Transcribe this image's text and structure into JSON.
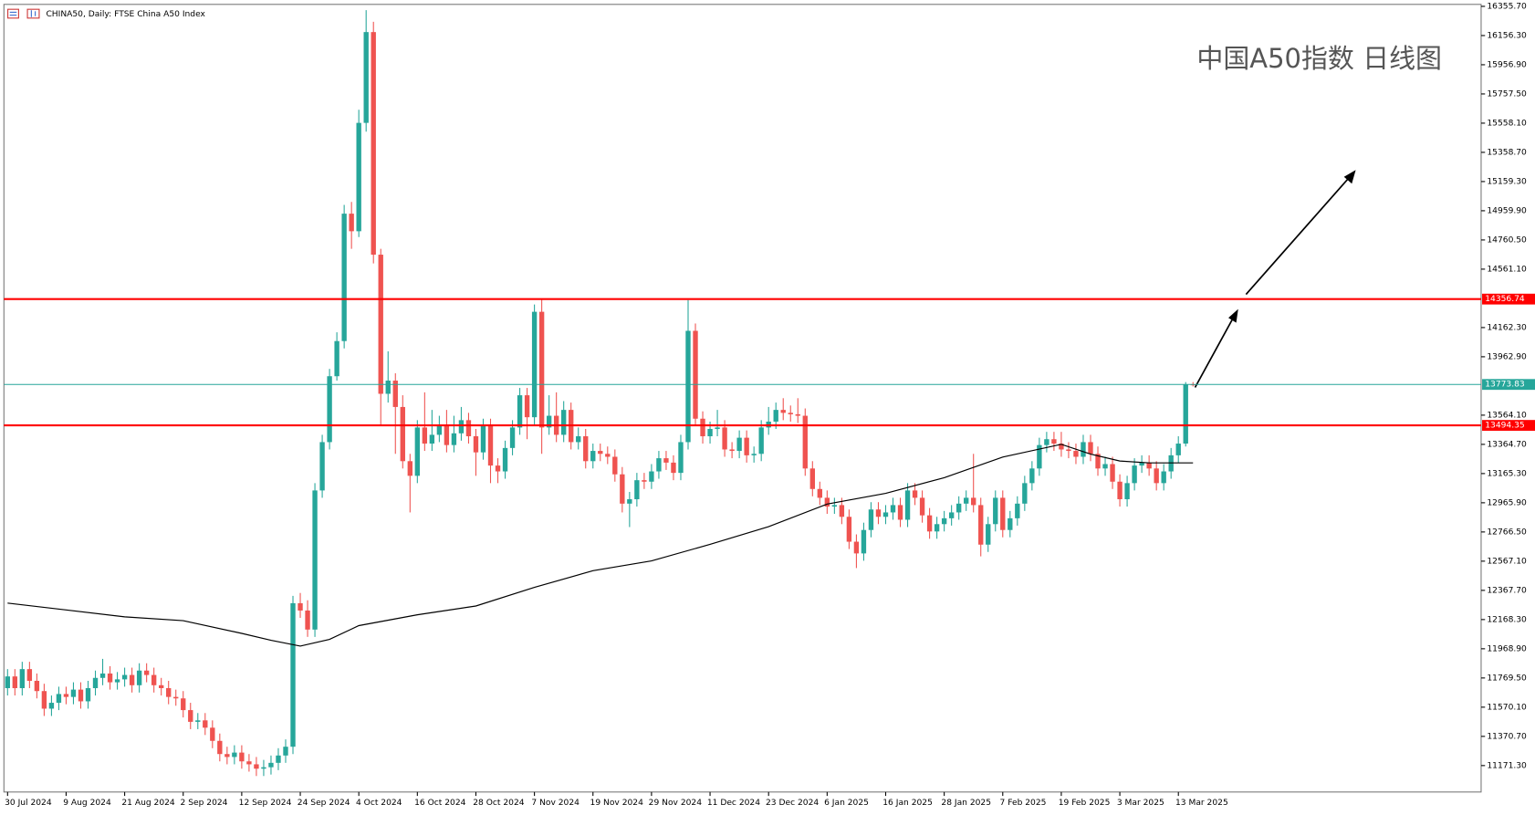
{
  "chart_data": {
    "type": "candlestick",
    "title": "CHINA50, Daily:  FTSE China A50 Index",
    "annotation": "中国A50指数 日线图",
    "up_color": "#26a69a",
    "down_color": "#ef5350",
    "ylim": [
      10990.8,
      16369.1
    ],
    "yticks": [
      {
        "value": 16355.7,
        "label": "16355.70"
      },
      {
        "value": 16156.3,
        "label": "16156.30"
      },
      {
        "value": 15956.9,
        "label": "15956.90"
      },
      {
        "value": 15757.5,
        "label": "15757.50"
      },
      {
        "value": 15558.1,
        "label": "15558.10"
      },
      {
        "value": 15358.7,
        "label": "15358.70"
      },
      {
        "value": 15159.3,
        "label": "15159.30"
      },
      {
        "value": 14959.9,
        "label": "14959.90"
      },
      {
        "value": 14760.5,
        "label": "14760.50"
      },
      {
        "value": 14561.1,
        "label": "14561.10"
      },
      {
        "value": 14162.3,
        "label": "14162.30"
      },
      {
        "value": 13962.9,
        "label": "13962.90"
      },
      {
        "value": 13564.1,
        "label": "13564.10"
      },
      {
        "value": 13364.7,
        "label": "13364.70"
      },
      {
        "value": 13165.3,
        "label": "13165.30"
      },
      {
        "value": 12965.9,
        "label": "12965.90"
      },
      {
        "value": 12766.5,
        "label": "12766.50"
      },
      {
        "value": 12567.1,
        "label": "12567.10"
      },
      {
        "value": 12367.7,
        "label": "12367.70"
      },
      {
        "value": 12168.3,
        "label": "12168.30"
      },
      {
        "value": 11968.9,
        "label": "11968.90"
      },
      {
        "value": 11769.5,
        "label": "11769.50"
      },
      {
        "value": 11570.1,
        "label": "11570.10"
      },
      {
        "value": 11370.7,
        "label": "11370.70"
      },
      {
        "value": 11171.3,
        "label": "11171.30"
      }
    ],
    "xticks": [
      {
        "value": 0,
        "label": "30 Jul 2024"
      },
      {
        "value": 8,
        "label": "9 Aug 2024"
      },
      {
        "value": 16,
        "label": "21 Aug 2024"
      },
      {
        "value": 24,
        "label": "2 Sep 2024"
      },
      {
        "value": 32,
        "label": "12 Sep 2024"
      },
      {
        "value": 40,
        "label": "24 Sep 2024"
      },
      {
        "value": 48,
        "label": "4 Oct 2024"
      },
      {
        "value": 56,
        "label": "16 Oct 2024"
      },
      {
        "value": 64,
        "label": "28 Oct 2024"
      },
      {
        "value": 72,
        "label": "7 Nov 2024"
      },
      {
        "value": 80,
        "label": "19 Nov 2024"
      },
      {
        "value": 88,
        "label": "29 Nov 2024"
      },
      {
        "value": 96,
        "label": "11 Dec 2024"
      },
      {
        "value": 104,
        "label": "23 Dec 2024"
      },
      {
        "value": 112,
        "label": "6 Jan 2025"
      },
      {
        "value": 120,
        "label": "16 Jan 2025"
      },
      {
        "value": 128,
        "label": "28 Jan 2025"
      },
      {
        "value": 136,
        "label": "7 Feb 2025"
      },
      {
        "value": 144,
        "label": "19 Feb 2025"
      },
      {
        "value": 152,
        "label": "3 Mar 2025"
      },
      {
        "value": 160,
        "label": "13 Mar 2025"
      }
    ],
    "open": [
      11700,
      11780,
      11700,
      11830,
      11750,
      11680,
      11560,
      11600,
      11660,
      11640,
      11690,
      11610,
      11700,
      11770,
      11800,
      11740,
      11760,
      11790,
      11720,
      11820,
      11790,
      11720,
      11700,
      11640,
      11630,
      11550,
      11470,
      11480,
      11430,
      11340,
      11250,
      11230,
      11260,
      11200,
      11180,
      11150,
      11160,
      11190,
      11240,
      11300,
      12280,
      12230,
      12100,
      13050,
      13380,
      13830,
      14070,
      14940,
      14820,
      15560,
      16180,
      14660,
      13710,
      13800,
      13620,
      13250,
      13150,
      13480,
      13370,
      13430,
      13500,
      13360,
      13440,
      13530,
      13420,
      13310,
      13490,
      13220,
      13180,
      13340,
      13480,
      13700,
      13550,
      14270,
      13480,
      13560,
      13430,
      13600,
      13380,
      13420,
      13250,
      13320,
      13300,
      13280,
      13160,
      12960,
      12990,
      13120,
      13110,
      13180,
      13270,
      13240,
      13170,
      13380,
      14140,
      13540,
      13420,
      13470,
      13480,
      13330,
      13320,
      13410,
      13290,
      13300,
      13480,
      13520,
      13600,
      13580,
      13570,
      13560,
      13200,
      13060,
      13000,
      12940,
      12950,
      12870,
      12700,
      12620,
      12780,
      12920,
      12870,
      12900,
      12950,
      12850,
      13050,
      13000,
      12880,
      12770,
      12820,
      12860,
      12900,
      12960,
      13000,
      12950,
      12680,
      12820,
      13000,
      12780,
      12860,
      12960,
      13100,
      13200,
      13360,
      13400,
      13370,
      13330,
      13320,
      13280,
      13380,
      13300,
      13200,
      13230,
      13110,
      12990,
      13100,
      13220,
      13240,
      13200,
      13100,
      13180,
      13290,
      13370,
      13775
    ],
    "close": [
      11780,
      11700,
      11830,
      11750,
      11680,
      11560,
      11600,
      11660,
      11640,
      11690,
      11610,
      11700,
      11770,
      11800,
      11740,
      11760,
      11790,
      11720,
      11820,
      11790,
      11720,
      11700,
      11640,
      11630,
      11550,
      11470,
      11480,
      11430,
      11340,
      11250,
      11230,
      11260,
      11200,
      11180,
      11150,
      11160,
      11190,
      11240,
      11300,
      12280,
      12230,
      12100,
      13050,
      13380,
      13830,
      14070,
      14940,
      14820,
      15560,
      16180,
      14660,
      13710,
      13800,
      13620,
      13250,
      13150,
      13480,
      13370,
      13430,
      13500,
      13360,
      13440,
      13530,
      13420,
      13310,
      13490,
      13220,
      13180,
      13340,
      13480,
      13700,
      13550,
      14270,
      13480,
      13560,
      13430,
      13600,
      13380,
      13420,
      13250,
      13320,
      13300,
      13280,
      13160,
      12960,
      12990,
      13120,
      13110,
      13180,
      13270,
      13240,
      13170,
      13380,
      14140,
      13540,
      13420,
      13470,
      13480,
      13330,
      13320,
      13410,
      13290,
      13300,
      13480,
      13520,
      13600,
      13580,
      13570,
      13560,
      13200,
      13060,
      13000,
      12940,
      12950,
      12870,
      12700,
      12620,
      12780,
      12920,
      12870,
      12900,
      12950,
      12850,
      13050,
      13000,
      12880,
      12770,
      12820,
      12860,
      12900,
      12960,
      13000,
      12950,
      12680,
      12820,
      13000,
      12780,
      12860,
      12960,
      13100,
      13200,
      13360,
      13400,
      13370,
      13330,
      13320,
      13280,
      13380,
      13300,
      13200,
      13230,
      13110,
      12990,
      13100,
      13220,
      13240,
      13200,
      13100,
      13180,
      13290,
      13370,
      13775,
      13774
    ],
    "high": [
      11830,
      11830,
      11880,
      11880,
      11800,
      11730,
      11650,
      11710,
      11710,
      11740,
      11740,
      11750,
      11820,
      11900,
      11850,
      11810,
      11840,
      11840,
      11870,
      11870,
      11840,
      11770,
      11750,
      11690,
      11680,
      11600,
      11530,
      11530,
      11480,
      11390,
      11300,
      11310,
      11310,
      11250,
      11230,
      11210,
      11240,
      11290,
      11350,
      12330,
      12350,
      12300,
      13100,
      13430,
      13880,
      14130,
      15000,
      15020,
      15650,
      16330,
      16250,
      14700,
      14000,
      13850,
      13700,
      13300,
      13530,
      13720,
      13600,
      13560,
      13600,
      13560,
      13620,
      13580,
      13470,
      13540,
      13540,
      13270,
      13390,
      13530,
      13750,
      13750,
      14320,
      14360,
      13700,
      13720,
      13660,
      13650,
      13480,
      13470,
      13370,
      13370,
      13350,
      13330,
      13210,
      13040,
      13170,
      13170,
      13230,
      13320,
      13320,
      13290,
      13430,
      14350,
      14190,
      13590,
      13520,
      13600,
      13530,
      13380,
      13460,
      13460,
      13350,
      13530,
      13620,
      13650,
      13680,
      13630,
      13680,
      13610,
      13250,
      13110,
      13050,
      13000,
      13000,
      12920,
      12750,
      12830,
      12970,
      12970,
      12950,
      13000,
      13000,
      13100,
      13100,
      13050,
      12930,
      12870,
      12910,
      12950,
      13010,
      13050,
      13300,
      13000,
      12870,
      13050,
      13050,
      12910,
      13010,
      13150,
      13250,
      13410,
      13450,
      13450,
      13450,
      13380,
      13370,
      13430,
      13430,
      13350,
      13280,
      13280,
      13160,
      13150,
      13270,
      13290,
      13290,
      13250,
      13230,
      13340,
      13420,
      13790,
      13790
    ],
    "low": [
      11650,
      11650,
      11650,
      11700,
      11630,
      11510,
      11510,
      11550,
      11590,
      11590,
      11560,
      11560,
      11650,
      11720,
      11690,
      11690,
      11710,
      11670,
      11670,
      11740,
      11670,
      11650,
      11590,
      11580,
      11500,
      11420,
      11420,
      11380,
      11290,
      11200,
      11180,
      11180,
      11150,
      11130,
      11100,
      11100,
      11110,
      11140,
      11190,
      11250,
      12180,
      12050,
      12050,
      13000,
      13330,
      13800,
      14020,
      14700,
      14780,
      15500,
      14600,
      13500,
      13650,
      13300,
      13200,
      12900,
      13100,
      13320,
      13320,
      13380,
      13310,
      13310,
      13390,
      13370,
      13150,
      13260,
      13100,
      13100,
      13130,
      13290,
      13430,
      13400,
      13500,
      13300,
      13430,
      13380,
      13380,
      13330,
      13330,
      13200,
      13200,
      13250,
      13230,
      13110,
      12900,
      12800,
      12940,
      13060,
      13060,
      13130,
      13190,
      13120,
      13120,
      13330,
      13490,
      13370,
      13370,
      13420,
      13280,
      13270,
      13270,
      13240,
      13240,
      13250,
      13430,
      13470,
      13530,
      13520,
      13510,
      13150,
      13010,
      12950,
      12890,
      12890,
      12820,
      12650,
      12520,
      12570,
      12730,
      12820,
      12820,
      12850,
      12800,
      12800,
      12950,
      12830,
      12720,
      12720,
      12770,
      12810,
      12850,
      12910,
      12900,
      12600,
      12630,
      12770,
      12730,
      12730,
      12810,
      12910,
      13050,
      13150,
      13310,
      13320,
      13280,
      13270,
      13230,
      13230,
      13250,
      13150,
      13150,
      13060,
      12940,
      12940,
      13050,
      13170,
      13150,
      13050,
      13050,
      13130,
      13240,
      13350,
      13760
    ],
    "ma": {
      "color": "#000000",
      "x": [
        0,
        8,
        16,
        24,
        32,
        36,
        40,
        44,
        48,
        56,
        64,
        72,
        80,
        88,
        96,
        104,
        112,
        120,
        128,
        136,
        144,
        148,
        152,
        156,
        162
      ],
      "values": [
        12281,
        12234,
        12187,
        12161,
        12074,
        12027,
        11987,
        12033,
        12127,
        12201,
        12261,
        12388,
        12502,
        12569,
        12682,
        12803,
        12957,
        13030,
        13137,
        13278,
        13365,
        13298,
        13251,
        13238,
        13238
      ]
    },
    "hlines": [
      {
        "value": 14356.74,
        "color": "#ff0000"
      },
      {
        "value": 13494.35,
        "color": "#ff0000"
      },
      {
        "value": 13773.83,
        "color": "#26a69a"
      }
    ]
  }
}
